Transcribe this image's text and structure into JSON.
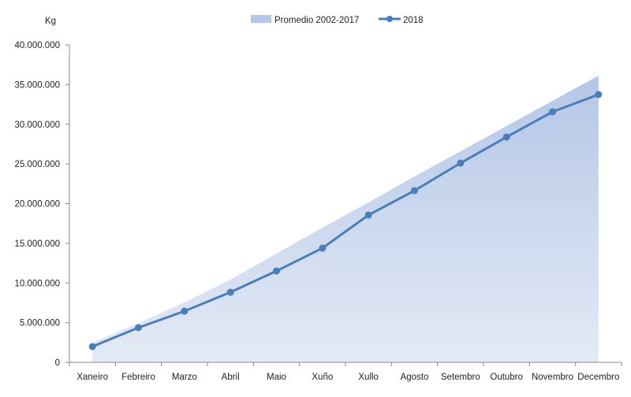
{
  "chart_data": {
    "type": "line",
    "ylabel": "Kg",
    "categories": [
      "Xaneiro",
      "Febreiro",
      "Marzo",
      "Abril",
      "Maio",
      "Xuño",
      "Xullo",
      "Agosto",
      "Setembro",
      "Outubro",
      "Novembro",
      "Decembro"
    ],
    "ylim": [
      0,
      40000000
    ],
    "yticks": [
      0,
      5000000,
      10000000,
      15000000,
      20000000,
      25000000,
      30000000,
      35000000,
      40000000
    ],
    "ytick_labels": [
      "0",
      "5.000.000",
      "10.000.000",
      "15.000.000",
      "20.000.000",
      "25.000.000",
      "30.000.000",
      "35.000.000",
      "40.000.000"
    ],
    "grid": false,
    "legend_position": "top",
    "series": [
      {
        "name": "Promedio 2002-2017",
        "kind": "area",
        "color": "#b4c7e7",
        "values": [
          2480000,
          4960000,
          7540000,
          10420000,
          13700000,
          16970000,
          20150000,
          23420000,
          26600000,
          29780000,
          32950000,
          36130000
        ]
      },
      {
        "name": "2018",
        "kind": "line",
        "color": "#4a7ebb",
        "values": [
          1990000,
          4370000,
          6450000,
          8830000,
          11510000,
          14390000,
          18560000,
          21640000,
          25110000,
          28390000,
          31560000,
          33750000
        ]
      }
    ]
  }
}
